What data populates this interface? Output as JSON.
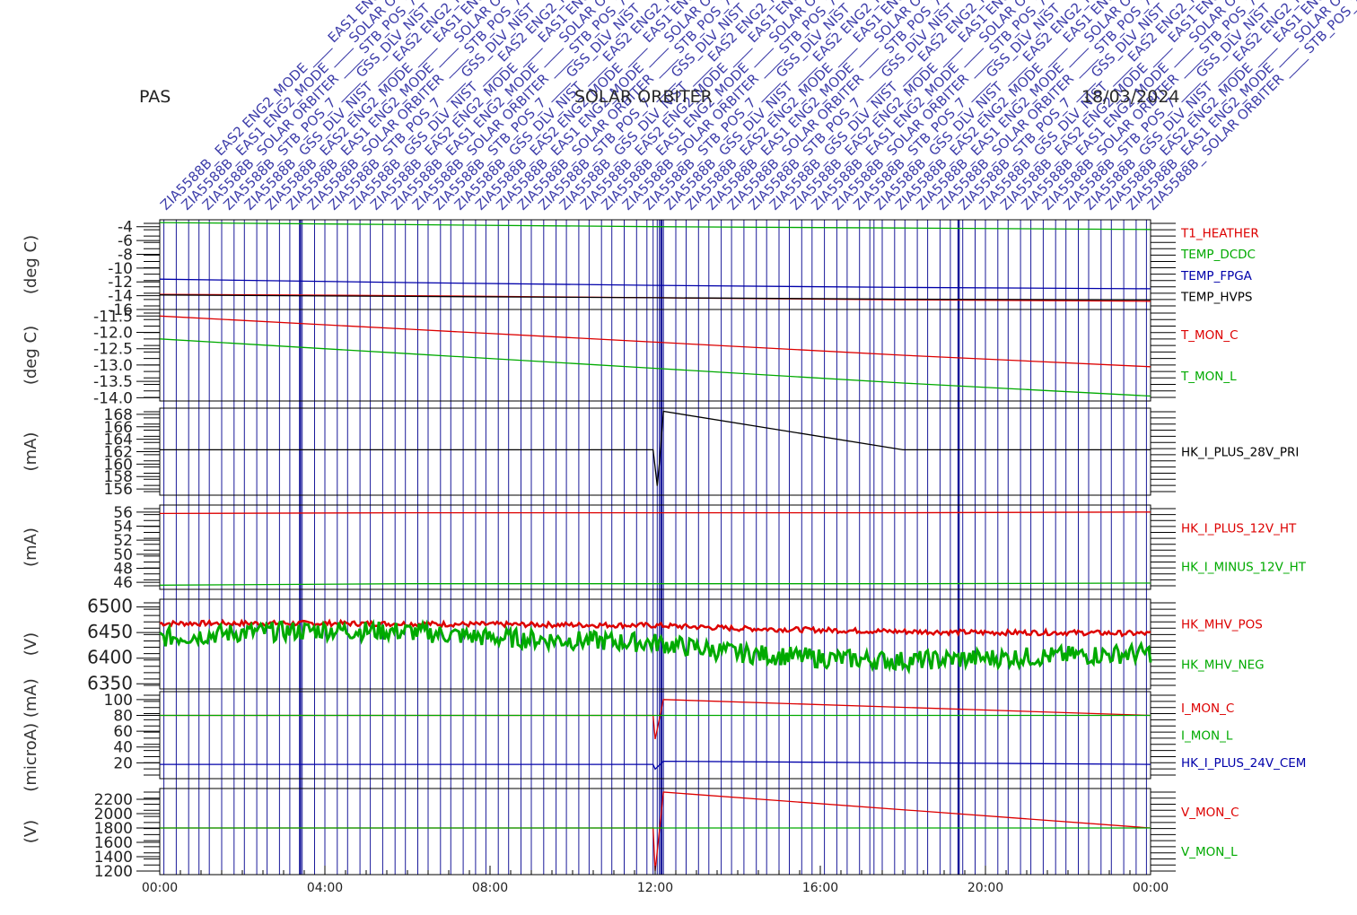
{
  "header": {
    "instrument": "PAS",
    "mission": "SOLAR ORBITER",
    "date": "18/03/2024"
  },
  "event_labels": {
    "common_prefix": "ZIA5588B",
    "samples": [
      "EAS2 ENG2_MODE",
      "EAS1 ENG2_MODE",
      "SOLAR ORBITER",
      "STB_POS_7",
      "GSS_DLV_NIST"
    ]
  },
  "colors": {
    "red": "#dd0000",
    "green": "#00aa00",
    "blue": "#0000aa",
    "black": "#000000",
    "event_line": "#1a1a9a",
    "axis": "#000000"
  },
  "chart_data": [
    {
      "type": "line",
      "ylabel": "(deg C)",
      "yticks": [
        "-4",
        "-6",
        "-8",
        "-10",
        "-12",
        "-14",
        "-16"
      ],
      "ylim": [
        -16,
        -3
      ],
      "series": [
        {
          "name": "T1_HEATHER",
          "color": "#dd0000",
          "x": [
            0,
            6,
            12,
            18,
            24
          ],
          "y": [
            -13.8,
            -14.0,
            -14.3,
            -14.6,
            -14.8
          ]
        },
        {
          "name": "TEMP_DCDC",
          "color": "#00aa00",
          "x": [
            0,
            6,
            12,
            18,
            24
          ],
          "y": [
            -3.4,
            -3.7,
            -4.0,
            -4.2,
            -4.4
          ]
        },
        {
          "name": "TEMP_FPGA",
          "color": "#0000aa",
          "x": [
            0,
            6,
            12,
            18,
            24
          ],
          "y": [
            -11.6,
            -12.1,
            -12.5,
            -12.8,
            -13.0
          ]
        },
        {
          "name": "TEMP_HVPS",
          "color": "#000000",
          "x": [
            0,
            6,
            12,
            18,
            24
          ],
          "y": [
            -13.9,
            -14.1,
            -14.3,
            -14.5,
            -14.6
          ]
        }
      ]
    },
    {
      "type": "line",
      "ylabel": "(deg C)",
      "yticks": [
        "-11.5",
        "-12.0",
        "-12.5",
        "-13.0",
        "-13.5",
        "-14.0"
      ],
      "ylim": [
        -14.1,
        -11.3
      ],
      "series": [
        {
          "name": "T_MON_C",
          "color": "#dd0000",
          "x": [
            0,
            6,
            12,
            18,
            24
          ],
          "y": [
            -11.5,
            -11.9,
            -12.3,
            -12.7,
            -13.05
          ]
        },
        {
          "name": "T_MON_L",
          "color": "#00aa00",
          "x": [
            0,
            6,
            12,
            18,
            24
          ],
          "y": [
            -12.2,
            -12.65,
            -13.1,
            -13.55,
            -13.95
          ]
        }
      ]
    },
    {
      "type": "line",
      "ylabel": "(mA)",
      "yticks": [
        "168",
        "166",
        "164",
        "162",
        "160",
        "158",
        "156"
      ],
      "ylim": [
        155,
        169
      ],
      "series": [
        {
          "name": "HK_I_PLUS_28V_PRI",
          "color": "#000000",
          "x": [
            0,
            6,
            11.95,
            12.05,
            12.1,
            12.2,
            18,
            24
          ],
          "y": [
            162.3,
            162.3,
            162.3,
            156.5,
            160,
            168.5,
            162.3,
            162.3
          ]
        }
      ]
    },
    {
      "type": "line",
      "ylabel": "(mA)",
      "yticks": [
        "56",
        "54",
        "52",
        "50",
        "48",
        "46"
      ],
      "ylim": [
        45,
        57
      ],
      "series": [
        {
          "name": "HK_I_PLUS_12V_HT",
          "color": "#dd0000",
          "x": [
            0,
            6,
            12,
            18,
            24
          ],
          "y": [
            55.8,
            55.9,
            55.9,
            55.9,
            56.0
          ]
        },
        {
          "name": "HK_I_MINUS_12V_HT",
          "color": "#00aa00",
          "x": [
            0,
            6,
            12,
            18,
            24
          ],
          "y": [
            45.6,
            45.8,
            45.8,
            45.8,
            45.9
          ]
        }
      ]
    },
    {
      "type": "line",
      "ylabel": "(V)",
      "yticks": [
        "6500",
        "6450",
        "6400",
        "6350"
      ],
      "ylim": [
        6340,
        6515
      ],
      "series": [
        {
          "name": "HK_MHV_POS",
          "color": "#dd0000",
          "x": [
            0,
            4,
            8,
            12,
            14,
            16,
            18,
            20,
            22,
            24
          ],
          "y": [
            6468,
            6468,
            6466,
            6464,
            6458,
            6455,
            6452,
            6450,
            6450,
            6448
          ]
        },
        {
          "name": "HK_MHV_NEG",
          "color": "#00aa00",
          "x": [
            0,
            2,
            4,
            6,
            8,
            10,
            12,
            14,
            16,
            18,
            20,
            22,
            24
          ],
          "y": [
            6440,
            6450,
            6455,
            6452,
            6440,
            6435,
            6430,
            6410,
            6400,
            6395,
            6400,
            6405,
            6410
          ]
        }
      ]
    },
    {
      "type": "line",
      "ylabel": "(microA) (mA)",
      "yticks": [
        "100",
        "80",
        "60",
        "40",
        "20"
      ],
      "ylim": [
        0,
        110
      ],
      "series": [
        {
          "name": "I_MON_C",
          "color": "#dd0000",
          "x": [
            0,
            11.95,
            12.0,
            12.2,
            24
          ],
          "y": [
            80,
            80,
            50,
            100,
            80
          ]
        },
        {
          "name": "I_MON_L",
          "color": "#00aa00",
          "x": [
            0,
            24
          ],
          "y": [
            80,
            80
          ]
        },
        {
          "name": "HK_I_PLUS_24V_CEM",
          "color": "#0000aa",
          "x": [
            0,
            11.95,
            12.0,
            12.2,
            24
          ],
          "y": [
            18,
            18,
            12,
            22,
            18
          ]
        }
      ]
    },
    {
      "type": "line",
      "ylabel": "(V)",
      "yticks": [
        "2200",
        "2000",
        "1800",
        "1600",
        "1400",
        "1200"
      ],
      "ylim": [
        1150,
        2350
      ],
      "series": [
        {
          "name": "V_MON_C",
          "color": "#dd0000",
          "x": [
            0,
            11.95,
            12.0,
            12.2,
            24
          ],
          "y": [
            1800,
            1800,
            1200,
            2300,
            1800
          ]
        },
        {
          "name": "V_MON_L",
          "color": "#00aa00",
          "x": [
            0,
            24
          ],
          "y": [
            1800,
            1800
          ]
        }
      ]
    }
  ],
  "xaxis": {
    "ticks": [
      "00:00",
      "04:00",
      "08:00",
      "12:00",
      "16:00",
      "20:00",
      "00:00"
    ],
    "xlim": [
      0,
      24
    ]
  },
  "event_times": [
    0.1,
    0.4,
    0.7,
    0.95,
    1.2,
    1.5,
    1.8,
    2.05,
    2.35,
    2.6,
    2.9,
    3.15,
    3.45,
    3.75,
    4.0,
    4.3,
    4.55,
    4.85,
    5.1,
    5.4,
    5.7,
    5.95,
    6.25,
    6.5,
    6.8,
    7.05,
    7.35,
    7.65,
    7.9,
    8.2,
    8.45,
    8.75,
    9.0,
    9.3,
    9.6,
    9.85,
    10.15,
    10.4,
    10.7,
    10.95,
    11.25,
    11.55,
    11.8,
    11.95,
    12.05,
    12.1,
    12.2,
    12.5,
    12.75,
    13.05,
    13.3,
    13.6,
    13.85,
    14.15,
    14.45,
    14.7,
    15.0,
    15.25,
    15.55,
    15.8,
    16.1,
    16.4,
    16.65,
    16.95,
    17.2,
    17.3,
    17.5,
    17.8,
    18.05,
    18.35,
    18.6,
    18.9,
    19.15,
    19.45,
    19.75,
    20.0,
    20.3,
    20.55,
    20.85,
    21.1,
    21.4,
    21.7,
    21.95,
    22.25,
    22.5,
    22.8,
    23.05,
    23.35,
    23.65,
    23.9
  ],
  "event_major": [
    3.4,
    12.15,
    19.35
  ]
}
